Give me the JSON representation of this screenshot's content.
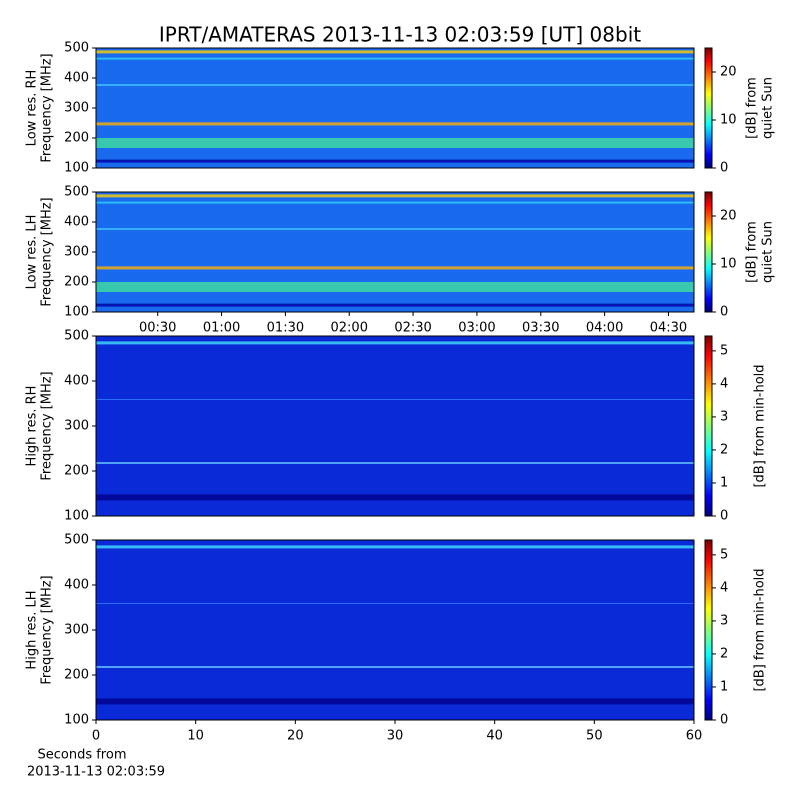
{
  "title": "IPRT/AMATERAS 2013-11-13 02:03:59 [UT]   08bit",
  "chart_data": [
    {
      "type": "heatmap",
      "y_label": [
        "Low res. RH",
        "Frequency [MHz]"
      ],
      "ylim": [
        100,
        500
      ],
      "yticks": [
        100,
        200,
        300,
        400,
        500
      ],
      "xlim": [
        1,
        282
      ],
      "colormap": "jet",
      "clim": [
        0,
        25
      ],
      "cticks": [
        0,
        10,
        20
      ],
      "colorbar_label": [
        "[dB] from",
        "quiet Sun"
      ]
    },
    {
      "type": "heatmap",
      "y_label": [
        "Low res. LH",
        "Frequency [MHz]"
      ],
      "ylim": [
        100,
        500
      ],
      "yticks": [
        100,
        200,
        300,
        400,
        500
      ],
      "xlim": [
        1,
        282
      ],
      "xticks": [
        {
          "value": 30,
          "label": "00:30"
        },
        {
          "value": 60,
          "label": "01:00"
        },
        {
          "value": 90,
          "label": "01:30"
        },
        {
          "value": 120,
          "label": "02:00"
        },
        {
          "value": 150,
          "label": "02:30"
        },
        {
          "value": 180,
          "label": "03:00"
        },
        {
          "value": 210,
          "label": "03:30"
        },
        {
          "value": 240,
          "label": "04:00"
        },
        {
          "value": 270,
          "label": "04:30"
        }
      ],
      "colormap": "jet",
      "clim": [
        0,
        25
      ],
      "cticks": [
        0,
        10,
        20
      ],
      "colorbar_label": [
        "[dB] from",
        "quiet Sun"
      ]
    },
    {
      "type": "heatmap",
      "y_label": [
        "High res. RH",
        "Frequency [MHz]"
      ],
      "ylim": [
        100,
        500
      ],
      "yticks": [
        100,
        200,
        300,
        400,
        500
      ],
      "xlim": [
        0,
        60
      ],
      "colormap": "jet",
      "clim": [
        0,
        5.45
      ],
      "cticks": [
        0,
        1,
        2,
        3,
        4,
        5
      ],
      "colorbar_label": [
        "[dB] from min-hold"
      ]
    },
    {
      "type": "heatmap",
      "y_label": [
        "High res. LH",
        "Frequency [MHz]"
      ],
      "ylim": [
        100,
        500
      ],
      "yticks": [
        100,
        200,
        300,
        400,
        500
      ],
      "xlim": [
        0,
        60
      ],
      "xticks": [
        0,
        10,
        20,
        30,
        40,
        50,
        60
      ],
      "x_label": [
        "Seconds from",
        "2013-11-13 02:03:59"
      ],
      "colormap": "jet",
      "clim": [
        0,
        5.45
      ],
      "cticks": [
        0,
        1,
        2,
        3,
        4,
        5
      ],
      "colorbar_label": [
        "[dB] from min-hold"
      ]
    }
  ]
}
